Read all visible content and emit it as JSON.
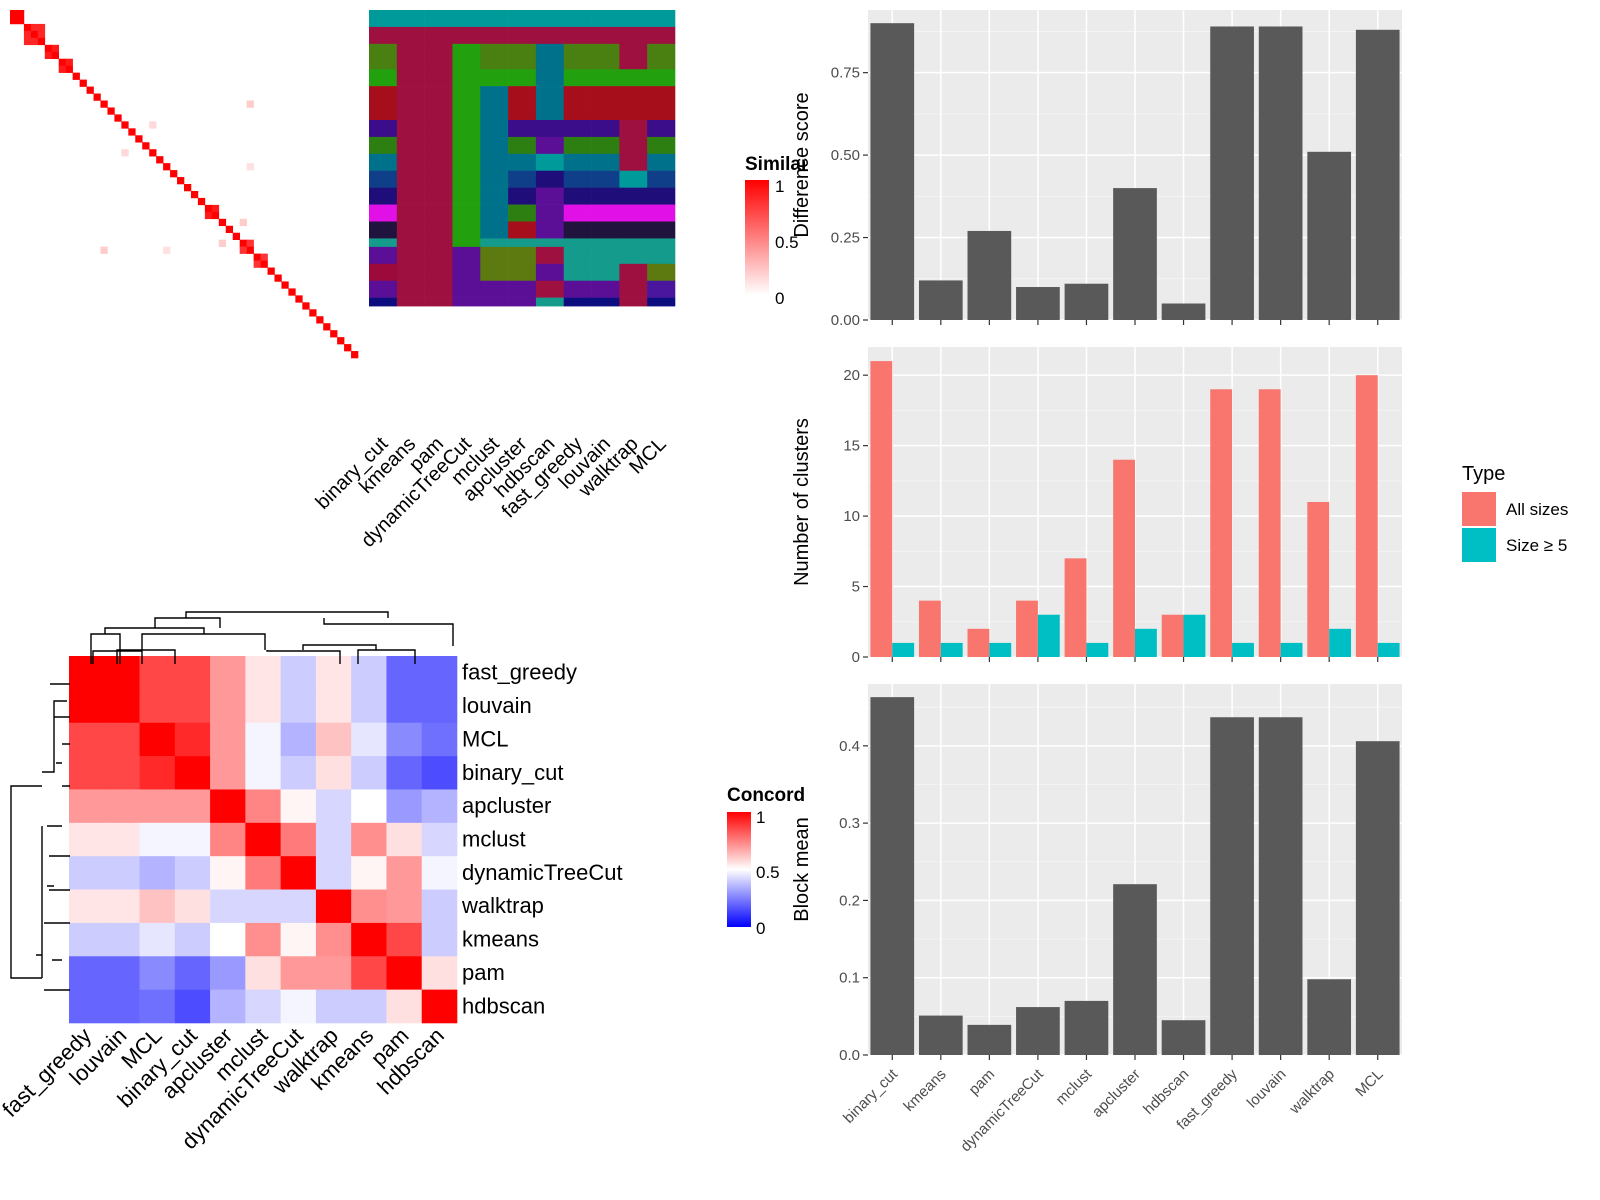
{
  "chart_data": [
    {
      "type": "heatmap",
      "legend_title": "Similarity",
      "legend_ticks": [
        "1",
        "0.5",
        "0"
      ],
      "legend_colors": [
        "#ffffff",
        "#ff0000"
      ],
      "n_samples": 50,
      "diag_blocks": [
        [
          0,
          1,
          1.0
        ],
        [
          2,
          4,
          0.85
        ],
        [
          5,
          6,
          0.9
        ],
        [
          7,
          8,
          0.9
        ],
        [
          28,
          29,
          0.9
        ],
        [
          33,
          34,
          0.8
        ],
        [
          35,
          36,
          0.8
        ]
      ],
      "offdiag_spots": [
        [
          13,
          34,
          0.2
        ],
        [
          16,
          20,
          0.15
        ],
        [
          22,
          34,
          0.12
        ],
        [
          30,
          33,
          0.2
        ]
      ],
      "methods": [
        "binary_cut",
        "kmeans",
        "pam",
        "dynamicTreeCut",
        "mclust",
        "apcluster",
        "hdbscan",
        "fast_greedy",
        "louvain",
        "walktrap",
        "MCL"
      ],
      "segment_bounds": [
        0,
        2,
        4,
        7,
        9,
        13,
        15,
        17,
        19,
        21,
        23,
        25,
        27,
        28,
        30,
        32,
        34,
        35,
        36,
        38,
        40,
        41,
        44,
        47,
        50
      ],
      "palette": [
        "#009a9a",
        "#9d1040",
        "#4a7f12",
        "#22a00e",
        "#a50e1a",
        "#3b0d8a",
        "#2e7f12",
        "#00718a",
        "#0f3f88",
        "#1f0d7a",
        "#e010e6",
        "#20133e",
        "#149b8c",
        "#5b0f96",
        "#0c0e80",
        "#13888d",
        "#9b0a3a",
        "#5d7a10",
        "#4a169e",
        "#8a0f37",
        "#2f0b9f"
      ],
      "assignment_grid": [
        [
          0,
          0,
          0,
          0,
          0,
          0,
          0,
          0,
          0,
          0,
          0
        ],
        [
          1,
          1,
          1,
          1,
          1,
          1,
          1,
          1,
          1,
          1,
          1
        ],
        [
          2,
          1,
          1,
          3,
          2,
          2,
          7,
          2,
          2,
          1,
          2
        ],
        [
          3,
          1,
          1,
          3,
          3,
          3,
          7,
          3,
          3,
          3,
          3
        ],
        [
          4,
          1,
          1,
          3,
          7,
          4,
          7,
          4,
          4,
          4,
          4
        ],
        [
          5,
          1,
          1,
          3,
          7,
          5,
          5,
          5,
          5,
          1,
          5
        ],
        [
          6,
          1,
          1,
          3,
          7,
          6,
          13,
          6,
          6,
          1,
          6
        ],
        [
          7,
          1,
          1,
          3,
          7,
          7,
          0,
          7,
          7,
          1,
          7
        ],
        [
          8,
          1,
          1,
          3,
          7,
          8,
          9,
          8,
          8,
          0,
          8
        ],
        [
          9,
          1,
          1,
          3,
          7,
          9,
          13,
          9,
          9,
          9,
          9
        ],
        [
          10,
          1,
          1,
          3,
          7,
          6,
          13,
          10,
          10,
          10,
          10
        ],
        [
          11,
          1,
          1,
          3,
          7,
          4,
          13,
          11,
          11,
          11,
          11
        ],
        [
          12,
          1,
          1,
          3,
          12,
          12,
          12,
          12,
          12,
          12,
          12
        ],
        [
          13,
          1,
          1,
          13,
          17,
          17,
          1,
          12,
          12,
          12,
          12
        ],
        [
          16,
          1,
          1,
          13,
          17,
          17,
          13,
          12,
          12,
          1,
          17
        ],
        [
          13,
          1,
          1,
          13,
          13,
          13,
          1,
          13,
          13,
          1,
          18
        ],
        [
          14,
          1,
          1,
          13,
          13,
          13,
          12,
          14,
          14,
          1,
          14
        ]
      ]
    },
    {
      "type": "bar",
      "ylabel": "Difference score",
      "categories": [
        "binary_cut",
        "kmeans",
        "pam",
        "dynamicTreeCut",
        "mclust",
        "apcluster",
        "hdbscan",
        "fast_greedy",
        "louvain",
        "walktrap",
        "MCL"
      ],
      "values": [
        0.9,
        0.12,
        0.27,
        0.1,
        0.11,
        0.4,
        0.05,
        0.89,
        0.89,
        0.51,
        0.88
      ],
      "ylim": [
        0,
        0.94
      ],
      "yticks": [
        "0.00",
        "0.25",
        "0.50",
        "0.75"
      ],
      "color": "#595959"
    },
    {
      "type": "bar",
      "ylabel": "Number of clusters",
      "categories": [
        "binary_cut",
        "kmeans",
        "pam",
        "dynamicTreeCut",
        "mclust",
        "apcluster",
        "hdbscan",
        "fast_greedy",
        "louvain",
        "walktrap",
        "MCL"
      ],
      "series": [
        {
          "name": "All sizes",
          "color": "#f8766d",
          "values": [
            21,
            4,
            2,
            4,
            7,
            14,
            3,
            19,
            19,
            11,
            20
          ]
        },
        {
          "name": "Size ≥ 5",
          "color": "#00bfc4",
          "values": [
            1,
            1,
            1,
            3,
            1,
            2,
            3,
            1,
            1,
            2,
            1
          ]
        }
      ],
      "legend_title": "Type",
      "legend_placement": "right",
      "ylim": [
        0,
        22
      ],
      "yticks": [
        "0",
        "5",
        "10",
        "15",
        "20"
      ]
    },
    {
      "type": "bar",
      "ylabel": "Block mean",
      "categories": [
        "binary_cut",
        "kmeans",
        "pam",
        "dynamicTreeCut",
        "mclust",
        "apcluster",
        "hdbscan",
        "fast_greedy",
        "louvain",
        "walktrap",
        "MCL"
      ],
      "values": [
        0.463,
        0.051,
        0.039,
        0.062,
        0.07,
        0.221,
        0.045,
        0.437,
        0.437,
        0.098,
        0.406
      ],
      "ylim": [
        0,
        0.48
      ],
      "yticks": [
        "0.0",
        "0.1",
        "0.2",
        "0.3",
        "0.4"
      ],
      "color": "#595959"
    },
    {
      "type": "heatmap",
      "legend_title": "Concordance",
      "legend_ticks": [
        "1",
        "0.5",
        "0"
      ],
      "legend_colors": [
        "#0000ff",
        "#ffffff",
        "#ff0000"
      ],
      "order": [
        "fast_greedy",
        "louvain",
        "MCL",
        "binary_cut",
        "apcluster",
        "mclust",
        "dynamicTreeCut",
        "walktrap",
        "kmeans",
        "pam",
        "hdbscan"
      ],
      "matrix": [
        [
          1.0,
          1.0,
          0.86,
          0.86,
          0.7,
          0.55,
          0.4,
          0.55,
          0.4,
          0.2,
          0.2
        ],
        [
          1.0,
          1.0,
          0.86,
          0.86,
          0.7,
          0.55,
          0.4,
          0.55,
          0.4,
          0.2,
          0.2
        ],
        [
          0.86,
          0.86,
          1.0,
          0.92,
          0.7,
          0.48,
          0.35,
          0.62,
          0.45,
          0.27,
          0.22
        ],
        [
          0.86,
          0.86,
          0.92,
          1.0,
          0.7,
          0.48,
          0.4,
          0.56,
          0.4,
          0.2,
          0.15
        ],
        [
          0.7,
          0.7,
          0.7,
          0.7,
          1.0,
          0.74,
          0.52,
          0.42,
          0.5,
          0.3,
          0.35
        ],
        [
          0.55,
          0.55,
          0.48,
          0.48,
          0.74,
          1.0,
          0.76,
          0.42,
          0.72,
          0.56,
          0.42
        ],
        [
          0.4,
          0.4,
          0.35,
          0.4,
          0.52,
          0.76,
          1.0,
          0.42,
          0.52,
          0.7,
          0.48
        ],
        [
          0.55,
          0.55,
          0.62,
          0.56,
          0.42,
          0.42,
          0.42,
          1.0,
          0.72,
          0.7,
          0.4
        ],
        [
          0.4,
          0.4,
          0.45,
          0.4,
          0.5,
          0.72,
          0.52,
          0.72,
          1.0,
          0.86,
          0.4
        ],
        [
          0.2,
          0.2,
          0.27,
          0.2,
          0.3,
          0.56,
          0.7,
          0.7,
          0.86,
          1.0,
          0.56
        ],
        [
          0.2,
          0.2,
          0.22,
          0.15,
          0.35,
          0.42,
          0.48,
          0.4,
          0.4,
          0.56,
          1.0
        ]
      ]
    }
  ]
}
